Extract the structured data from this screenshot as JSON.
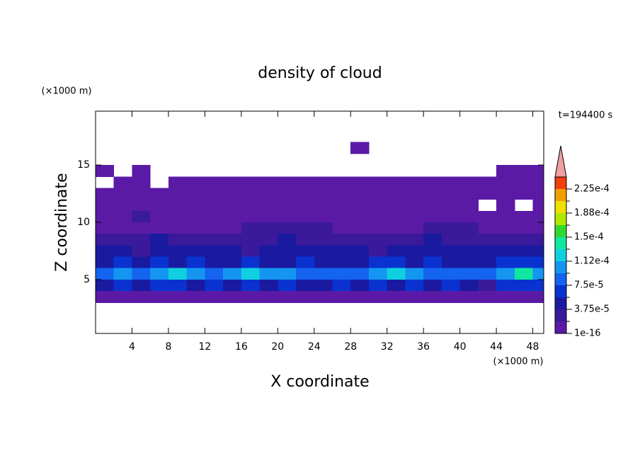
{
  "chart_data": {
    "type": "contour",
    "title": "density of cloud",
    "xlabel": "X coordinate",
    "ylabel": "Z coordinate",
    "xunit": "(×1000 m)",
    "yunit": "(×1000 m)",
    "time_label": "t=194400 s",
    "xlim": [
      0,
      49.2
    ],
    "ylim": [
      0.3,
      19.7
    ],
    "xticks": [
      4,
      8,
      12,
      16,
      20,
      24,
      28,
      32,
      36,
      40,
      44,
      48
    ],
    "yticks": [
      5,
      10,
      15
    ],
    "x": [
      1,
      3,
      5,
      7,
      9,
      11,
      13,
      15,
      17,
      19,
      21,
      23,
      25,
      27,
      29,
      31,
      33,
      35,
      37,
      39,
      41,
      43,
      45,
      47,
      49
    ],
    "y": [
      16.5,
      15.5,
      14.5,
      13.5,
      12.5,
      11.5,
      10.5,
      9.5,
      8.5,
      7.5,
      6.5,
      5.5,
      4.5,
      3.5
    ],
    "z": [
      [
        0,
        0,
        0,
        0,
        0,
        0,
        0,
        0,
        0,
        0,
        0,
        0,
        0,
        0,
        1e-05,
        0,
        0,
        0,
        0,
        0,
        0,
        0,
        0,
        0,
        0
      ],
      [
        0,
        0,
        0,
        0,
        0,
        0,
        0,
        0,
        0,
        0,
        0,
        0,
        0,
        0,
        0,
        0,
        0,
        0,
        0,
        0,
        0,
        0,
        0,
        0,
        0
      ],
      [
        1e-05,
        0,
        1e-05,
        0,
        0,
        0,
        0,
        0,
        0,
        0,
        0,
        0,
        0,
        0,
        0,
        0,
        0,
        0,
        0,
        0,
        0,
        0,
        1e-05,
        1e-05,
        1e-05
      ],
      [
        0,
        1e-05,
        1e-05,
        0,
        1e-05,
        1e-05,
        1e-05,
        1e-05,
        1e-05,
        1e-05,
        1e-05,
        1e-05,
        1e-05,
        1e-05,
        1e-05,
        1e-05,
        1e-05,
        1e-05,
        1e-05,
        1e-05,
        1e-05,
        1e-05,
        1e-05,
        1e-05,
        1e-05
      ],
      [
        1e-05,
        1e-05,
        1e-05,
        1e-05,
        1e-05,
        1e-05,
        1e-05,
        1e-05,
        1e-05,
        1e-05,
        1e-05,
        1e-05,
        1e-05,
        1e-05,
        1e-05,
        1e-05,
        1e-05,
        1e-05,
        1e-05,
        1e-05,
        1e-05,
        1e-05,
        1e-05,
        1e-05,
        1e-05
      ],
      [
        1e-05,
        1e-05,
        1e-05,
        1e-05,
        1e-05,
        1e-05,
        1e-05,
        1e-05,
        1e-05,
        1e-05,
        1e-05,
        1e-05,
        1e-05,
        1e-05,
        1e-05,
        1e-05,
        1e-05,
        1e-05,
        1e-05,
        1e-05,
        1e-05,
        0,
        1e-05,
        0,
        1e-05
      ],
      [
        1e-05,
        1e-05,
        2.5e-05,
        1e-05,
        1e-05,
        1e-05,
        1e-05,
        1e-05,
        1e-05,
        1e-05,
        1e-05,
        1e-05,
        1e-05,
        1e-05,
        1e-05,
        1e-05,
        1e-05,
        1e-05,
        1e-05,
        1e-05,
        1e-05,
        1e-05,
        1e-05,
        1e-05,
        1e-05
      ],
      [
        1e-05,
        1e-05,
        1e-05,
        1e-05,
        1e-05,
        1e-05,
        1e-05,
        1e-05,
        2.5e-05,
        2.5e-05,
        2.5e-05,
        2.5e-05,
        2.5e-05,
        1e-05,
        1e-05,
        1e-05,
        1e-05,
        1e-05,
        2.5e-05,
        2.5e-05,
        2.5e-05,
        1e-05,
        1e-05,
        1e-05,
        1e-05
      ],
      [
        2.5e-05,
        2.5e-05,
        2.5e-05,
        4e-05,
        2.5e-05,
        2.5e-05,
        2.5e-05,
        2.5e-05,
        2.5e-05,
        2.5e-05,
        4e-05,
        2.5e-05,
        2.5e-05,
        2.5e-05,
        2.5e-05,
        2.5e-05,
        2.5e-05,
        2.5e-05,
        4e-05,
        2.5e-05,
        2.5e-05,
        2.5e-05,
        2.5e-05,
        2.5e-05,
        2.5e-05
      ],
      [
        4e-05,
        4e-05,
        2.5e-05,
        4e-05,
        4e-05,
        4e-05,
        4e-05,
        4e-05,
        2.5e-05,
        4e-05,
        4e-05,
        4e-05,
        4e-05,
        4e-05,
        4e-05,
        2.5e-05,
        4e-05,
        4e-05,
        4e-05,
        4e-05,
        4e-05,
        4e-05,
        4e-05,
        4e-05,
        4e-05
      ],
      [
        4e-05,
        6.5e-05,
        4e-05,
        6.5e-05,
        4e-05,
        6.5e-05,
        4e-05,
        4e-05,
        6.5e-05,
        4e-05,
        4e-05,
        6.5e-05,
        4e-05,
        4e-05,
        4e-05,
        6.5e-05,
        6.5e-05,
        4e-05,
        6.5e-05,
        4e-05,
        4e-05,
        4e-05,
        6.5e-05,
        6.5e-05,
        6.5e-05
      ],
      [
        8e-05,
        0.0001,
        8e-05,
        0.0001,
        0.00012,
        0.0001,
        8e-05,
        0.0001,
        0.00012,
        0.0001,
        0.0001,
        8e-05,
        8e-05,
        8e-05,
        8e-05,
        0.0001,
        0.00012,
        0.0001,
        8e-05,
        8e-05,
        8e-05,
        8e-05,
        0.0001,
        0.00014,
        0.0001
      ],
      [
        4e-05,
        6.5e-05,
        4e-05,
        6.5e-05,
        6.5e-05,
        4e-05,
        6.5e-05,
        4e-05,
        6.5e-05,
        4e-05,
        6.5e-05,
        4e-05,
        4e-05,
        6.5e-05,
        4e-05,
        6.5e-05,
        4e-05,
        6.5e-05,
        4e-05,
        6.5e-05,
        4e-05,
        2.5e-05,
        6.5e-05,
        6.5e-05,
        6.5e-05
      ],
      [
        1e-05,
        1e-05,
        1e-05,
        1e-05,
        1e-05,
        1e-05,
        1e-05,
        1e-05,
        1e-05,
        1e-05,
        1e-05,
        1e-05,
        1e-05,
        1e-05,
        1e-05,
        1e-05,
        1e-05,
        1e-05,
        1e-05,
        1e-05,
        1e-05,
        1e-05,
        1e-05,
        1e-05,
        1e-05
      ]
    ],
    "levels": [
      1e-16,
      1.875e-05,
      3.75e-05,
      5.625e-05,
      7.5e-05,
      9.375e-05,
      0.0001125,
      0.00013125,
      0.00015,
      0.00016875,
      0.0001875,
      0.00020625,
      0.000225
    ],
    "colors": [
      "#5a1aa6",
      "#3a1a9a",
      "#1a1aa0",
      "#0a32d0",
      "#1464f0",
      "#1496f0",
      "#10d0e0",
      "#10e8a0",
      "#30d830",
      "#b0e800",
      "#f0e000",
      "#f0a000",
      "#f04010"
    ],
    "extend_color": "#f0a0a0",
    "clim": [
      1e-16,
      0.00024375
    ],
    "cticks": [
      {
        "value": 1e-16,
        "label": "1e-16"
      },
      {
        "value": 3.75e-05,
        "label": "3.75e-5"
      },
      {
        "value": 7.5e-05,
        "label": "7.5e-5"
      },
      {
        "value": 0.0001125,
        "label": "1.12e-4"
      },
      {
        "value": 0.00015,
        "label": "1.5e-4"
      },
      {
        "value": 0.0001875,
        "label": "1.88e-4"
      },
      {
        "value": 0.000225,
        "label": "2.25e-4"
      }
    ]
  }
}
